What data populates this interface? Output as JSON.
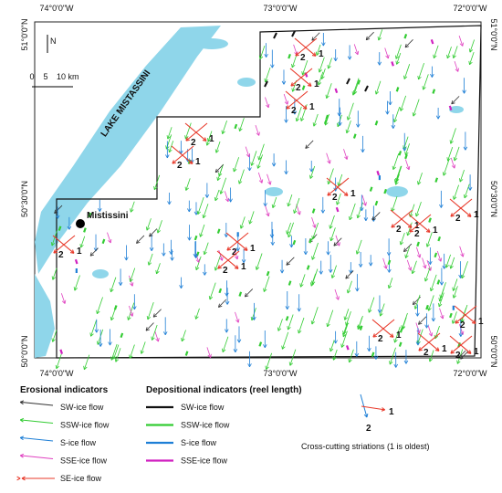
{
  "map": {
    "longitude_labels": [
      "74°0'0\"W",
      "73°0'0\"W",
      "72°0'0\"W"
    ],
    "latitude_labels": [
      "51°0'0\"N",
      "50°30'0\"N",
      "50°0'0\"N"
    ],
    "lake_label": "LAKE MISTASSINI",
    "town_label": "Mistissini",
    "north_label": "N",
    "scale_labels": [
      "0",
      "5",
      "10 km"
    ]
  },
  "legend": {
    "erosional": {
      "title": "Erosional indicators",
      "items": [
        {
          "label": "SW-ice flow",
          "color": "#333333"
        },
        {
          "label": "SSW-ice flow",
          "color": "#33cc33"
        },
        {
          "label": "S-ice flow",
          "color": "#1e7fd6"
        },
        {
          "label": "SSE-ice flow",
          "color": "#e040c0"
        },
        {
          "label": "SE-ice flow",
          "color": "#e8392a"
        }
      ]
    },
    "depositional": {
      "title": "Depositional indicators (reel length)",
      "items": [
        {
          "label": "SW-ice flow",
          "color": "#111111"
        },
        {
          "label": "SSW-ice flow",
          "color": "#33cc33"
        },
        {
          "label": "S-ice flow",
          "color": "#1e7fd6"
        },
        {
          "label": "SSE-ice flow",
          "color": "#d020c0"
        }
      ]
    },
    "cross_cutting": {
      "labels": [
        "1",
        "2"
      ],
      "caption": "Cross-cutting striations (1 is oldest)"
    }
  }
}
